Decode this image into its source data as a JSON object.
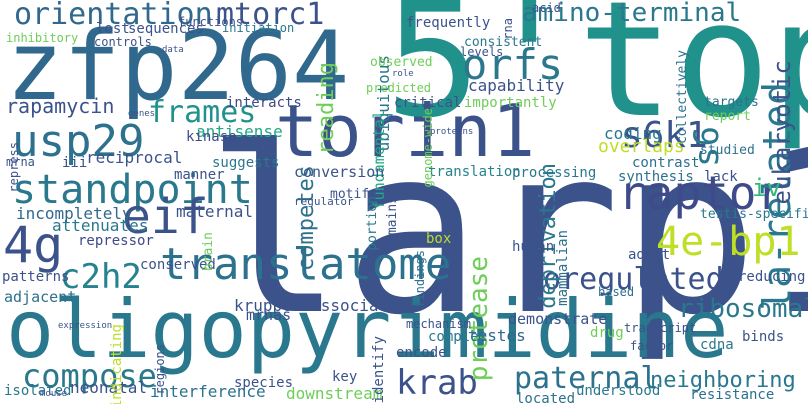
{
  "words": [
    {
      "text": "larp1",
      "color": "#3b528b"
    },
    {
      "text": "5'top",
      "color": "#21918c"
    },
    {
      "text": "oligopyrimidine",
      "color": "#2a788e"
    },
    {
      "text": "zfp264",
      "color": "#31688e"
    },
    {
      "text": "torin1",
      "color": "#3b528b"
    },
    {
      "text": "translatome",
      "color": "#2c718e"
    },
    {
      "text": "standpoint",
      "color": "#2a788e"
    },
    {
      "text": "orientation",
      "color": "#31688e"
    },
    {
      "text": "mtorc1",
      "color": "#3b528b"
    },
    {
      "text": "usp29",
      "color": "#2c718e"
    },
    {
      "text": "frames",
      "color": "#21918c"
    },
    {
      "text": "orfs",
      "color": "#2a788e"
    },
    {
      "text": "raptor",
      "color": "#3e4a89"
    },
    {
      "text": "s6k1",
      "color": "#3b528b"
    },
    {
      "text": "la-related",
      "color": "#2a788e"
    },
    {
      "text": "eif",
      "color": "#3b528b"
    },
    {
      "text": "4g",
      "color": "#3b528b"
    },
    {
      "text": "c2h2",
      "color": "#26828e"
    },
    {
      "text": "4e-bp1",
      "color": "#bddf26"
    },
    {
      "text": "coregulated",
      "color": "#3b528b"
    },
    {
      "text": "krab",
      "color": "#3b528b"
    },
    {
      "text": "compose",
      "color": "#2a788e"
    },
    {
      "text": "paternal",
      "color": "#2c718e"
    },
    {
      "text": "neighboring",
      "color": "#2a788e"
    },
    {
      "text": "ribosomal",
      "color": "#2a788e"
    },
    {
      "text": "amino-terminal",
      "color": "#2a788e"
    },
    {
      "text": "eukaryotic",
      "color": "#3b528b"
    },
    {
      "text": "s6",
      "color": "#2a788e"
    },
    {
      "text": "iv",
      "color": "#35b779"
    },
    {
      "text": "rapamycin",
      "color": "#3b528b"
    },
    {
      "text": "competes",
      "color": "#2c718e"
    },
    {
      "text": "reading",
      "color": "#6ece58"
    },
    {
      "text": "deprivation",
      "color": "#2a788e"
    },
    {
      "text": "protease",
      "color": "#6ece58"
    },
    {
      "text": "overlaps",
      "color": "#bddf26"
    },
    {
      "text": "antisense",
      "color": "#22a884"
    },
    {
      "text": "reciprocal",
      "color": "#3b528b"
    },
    {
      "text": "incompletely",
      "color": "#31688e"
    },
    {
      "text": "attenuates",
      "color": "#2a788e"
    },
    {
      "text": "maternal",
      "color": "#3b528b"
    },
    {
      "text": "kruppel-associated",
      "color": "#3b528b"
    },
    {
      "text": "ubiquitous",
      "color": "#2a788e"
    },
    {
      "text": "fundamental",
      "color": "#22a884"
    },
    {
      "text": "translation",
      "color": "#26828e"
    },
    {
      "text": "conversion",
      "color": "#3b528b"
    },
    {
      "text": "capability",
      "color": "#3b528b"
    },
    {
      "text": "coding",
      "color": "#2a788e"
    },
    {
      "text": "testes",
      "color": "#31688e"
    },
    {
      "text": "demonstrate",
      "color": "#3b528b"
    },
    {
      "text": "mrnas",
      "color": "#3b528b"
    },
    {
      "text": "interference",
      "color": "#2c718e"
    },
    {
      "text": "downstream",
      "color": "#6ece58"
    },
    {
      "text": "neonatal",
      "color": "#3b528b"
    },
    {
      "text": "isolated",
      "color": "#2a788e"
    },
    {
      "text": "adjacent",
      "color": "#2c718e"
    },
    {
      "text": "patterns",
      "color": "#3b528b"
    },
    {
      "text": "conserved",
      "color": "#3b528b"
    },
    {
      "text": "repressor",
      "color": "#3e4a89"
    },
    {
      "text": "iii",
      "color": "#3b528b"
    },
    {
      "text": "kinase",
      "color": "#3e4a89"
    },
    {
      "text": "suggests",
      "color": "#2a788e"
    },
    {
      "text": "manner",
      "color": "#3b528b"
    },
    {
      "text": "interacts",
      "color": "#3e4a89"
    },
    {
      "text": "critical",
      "color": "#3b528b"
    },
    {
      "text": "importantly",
      "color": "#6ece58"
    },
    {
      "text": "processing",
      "color": "#2a788e"
    },
    {
      "text": "synthesis",
      "color": "#2c718e"
    },
    {
      "text": "contrast",
      "color": "#2c718e"
    },
    {
      "text": "lack",
      "color": "#3b528b"
    },
    {
      "text": "testis-specific",
      "color": "#2a788e"
    },
    {
      "text": "studied",
      "color": "#2c718e"
    },
    {
      "text": "targets",
      "color": "#2c718e"
    },
    {
      "text": "report",
      "color": "#6ece58"
    },
    {
      "text": "collectively",
      "color": "#2c718e"
    },
    {
      "text": "binds",
      "color": "#3b528b"
    },
    {
      "text": "reducing",
      "color": "#3b528b"
    },
    {
      "text": "cdna",
      "color": "#2a788e"
    },
    {
      "text": "adult",
      "color": "#3b528b"
    },
    {
      "text": "mammalian",
      "color": "#2c718e"
    },
    {
      "text": "human",
      "color": "#3b528b"
    },
    {
      "text": "drug",
      "color": "#6ece58"
    },
    {
      "text": "transcript",
      "color": "#3b528b"
    },
    {
      "text": "factor",
      "color": "#3b528b"
    },
    {
      "text": "resistance",
      "color": "#2c718e"
    },
    {
      "text": "understood",
      "color": "#2a788e"
    },
    {
      "text": "located",
      "color": "#2c718e"
    },
    {
      "text": "identify",
      "color": "#3b528b"
    },
    {
      "text": "key",
      "color": "#3b528b"
    },
    {
      "text": "encode",
      "color": "#3b528b"
    },
    {
      "text": "complex",
      "color": "#2a788e"
    },
    {
      "text": "mechanism",
      "color": "#3b528b"
    },
    {
      "text": "findings",
      "color": "#2c718e"
    },
    {
      "text": "domains",
      "color": "#3b528b"
    },
    {
      "text": "portion",
      "color": "#2a788e"
    },
    {
      "text": "motif",
      "color": "#3b528b"
    },
    {
      "text": "box",
      "color": "#bddf26"
    },
    {
      "text": "based",
      "color": "#2c718e"
    },
    {
      "text": "regulator",
      "color": "#3b528b"
    },
    {
      "text": "species",
      "color": "#3b528b"
    },
    {
      "text": "regions",
      "color": "#3b528b"
    },
    {
      "text": "indicating",
      "color": "#bddf26"
    },
    {
      "text": "brain",
      "color": "#6ece58"
    },
    {
      "text": "expression",
      "color": "#3b528b"
    },
    {
      "text": "mouse",
      "color": "#3b528b"
    },
    {
      "text": "genes",
      "color": "#3b528b"
    },
    {
      "text": "data",
      "color": "#3b528b"
    },
    {
      "text": "mrna",
      "color": "#3b528b"
    },
    {
      "text": "repress",
      "color": "#3b528b"
    },
    {
      "text": "inhibitory",
      "color": "#6ece58"
    },
    {
      "text": "lost",
      "color": "#3b528b"
    },
    {
      "text": "sequences",
      "color": "#3b528b"
    },
    {
      "text": "controls",
      "color": "#3b528b"
    },
    {
      "text": "functions",
      "color": "#3b528b"
    },
    {
      "text": "initiation",
      "color": "#2a788e"
    },
    {
      "text": "frequently",
      "color": "#3b528b"
    },
    {
      "text": "rna",
      "color": "#3b528b"
    },
    {
      "text": "acid",
      "color": "#3b528b"
    },
    {
      "text": "consistent",
      "color": "#2a788e"
    },
    {
      "text": "levels",
      "color": "#3b528b"
    },
    {
      "text": "genome-wide",
      "color": "#6ece58"
    },
    {
      "text": "observed",
      "color": "#6ece58"
    },
    {
      "text": "role",
      "color": "#3b528b"
    },
    {
      "text": "predicted",
      "color": "#6ece58"
    },
    {
      "text": "proteins",
      "color": "#3b528b"
    }
  ]
}
